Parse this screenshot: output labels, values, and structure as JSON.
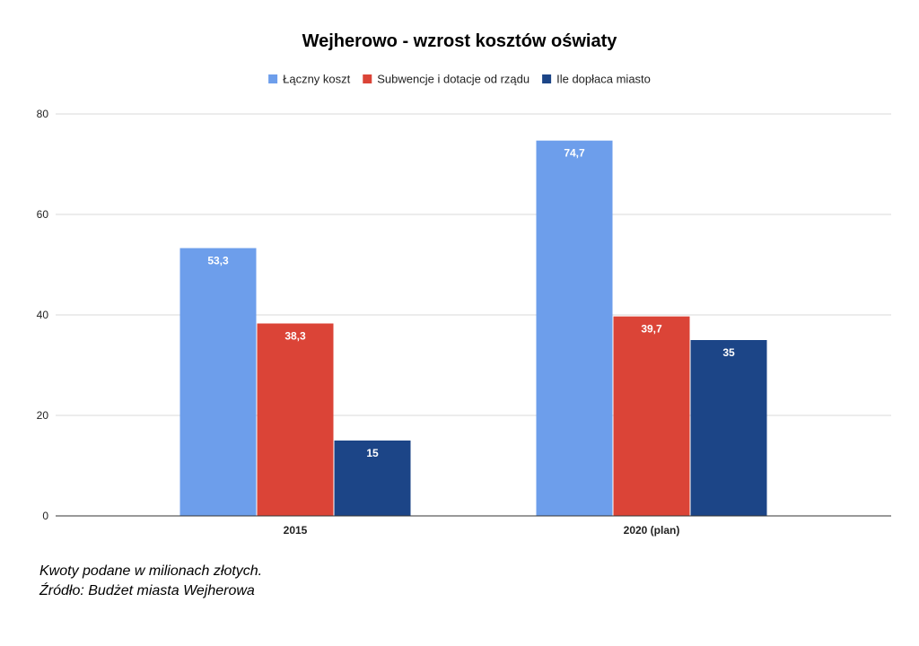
{
  "chart_data": {
    "type": "bar",
    "title": "Wejherowo - wzrost kosztów oświaty",
    "categories": [
      "2015",
      "2020 (plan)"
    ],
    "series": [
      {
        "name": "Łączny koszt",
        "color": "#6d9eeb",
        "values": [
          53.3,
          74.7
        ],
        "labels": [
          "53,3",
          "74,7"
        ]
      },
      {
        "name": "Subwencje i dotacje od rządu",
        "color": "#db4437",
        "values": [
          38.3,
          39.7
        ],
        "labels": [
          "38,3",
          "39,7"
        ]
      },
      {
        "name": "Ile dopłaca miasto",
        "color": "#1c4587",
        "values": [
          15,
          35
        ],
        "labels": [
          "15",
          "35"
        ]
      }
    ],
    "ylim": [
      0,
      80
    ],
    "yticks": [
      0,
      20,
      40,
      60,
      80
    ],
    "grid": true,
    "legend_position": "top"
  },
  "footnote": {
    "line1": "Kwoty podane w milionach złotych.",
    "line2": "Źródło: Budżet miasta Wejherowa"
  }
}
